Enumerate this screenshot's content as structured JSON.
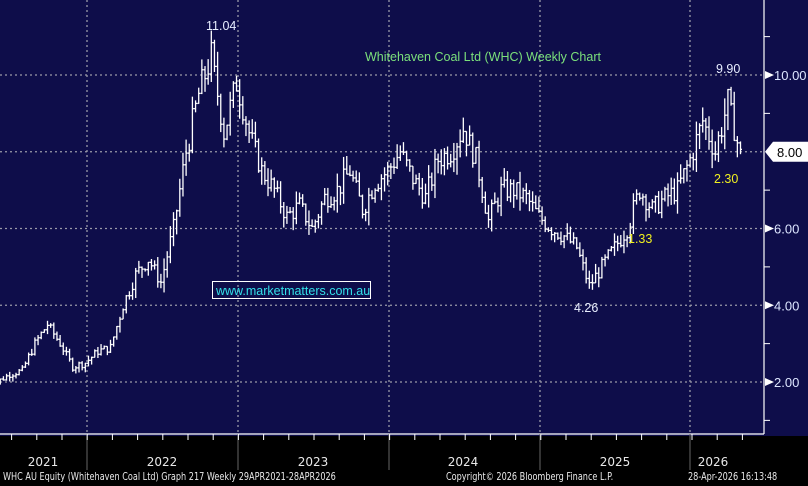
{
  "chart_data": {
    "type": "line",
    "style": "weekly-hlc-bars",
    "title": "Whitehaven Coal Ltd (WHC) Weekly Chart",
    "watermark_link": "www.marketmatters.com.au",
    "xlabel": "",
    "ylabel": "",
    "ylim": [
      0.7,
      11.5
    ],
    "y_ticks": [
      "2.00",
      "4.00",
      "6.00",
      "8.00",
      "10.00"
    ],
    "y_tick_values": [
      2,
      4,
      6,
      8,
      10
    ],
    "x_ticks": [
      "2021",
      "2022",
      "2023",
      "2024",
      "2025",
      "2026"
    ],
    "current_price_tag": "8.00",
    "current_price": 8.0,
    "grid": true,
    "start_date": "2021-04-29",
    "end_date": "2026-04-28",
    "monthly_close_series": {
      "months_from": "2021-05",
      "values": [
        2.0,
        2.2,
        2.3,
        3.0,
        3.5,
        3.0,
        2.4,
        2.5,
        2.8,
        2.9,
        4.0,
        4.8,
        5.2,
        4.6,
        6.0,
        8.0,
        9.5,
        10.5,
        8.5,
        9.8,
        8.5,
        7.5,
        7.0,
        6.3,
        6.6,
        6.0,
        6.8,
        7.0,
        7.5,
        6.5,
        7.2,
        7.5,
        8.0,
        7.3,
        6.8,
        7.8,
        8.0,
        8.6,
        7.8,
        6.2,
        7.0,
        7.0,
        6.8,
        6.3,
        6.0,
        5.8,
        5.5,
        4.5,
        5.0,
        5.5,
        6.0,
        7.0,
        6.5,
        6.8,
        7.0,
        7.8,
        8.8,
        8.0,
        9.3,
        7.9
      ]
    },
    "annotations": [
      {
        "text": "11.04",
        "value": 11.04,
        "date": "2022-12",
        "color": "#e8eeff"
      },
      {
        "text": "9.90",
        "value": 9.9,
        "date": "2026-03",
        "color": "#e8eeff"
      },
      {
        "text": "4.26",
        "value": 4.26,
        "date": "2025-04",
        "color": "#e8eeff"
      },
      {
        "text": "2.30",
        "value": 2.3,
        "date": "2026-04",
        "color": "#f0f020"
      },
      {
        "text": "1.33",
        "value": 1.33,
        "date": "2025-08",
        "color": "#f0f020"
      }
    ]
  },
  "colors": {
    "background": "#0e0d4a",
    "bars": "#ffffff",
    "title": "#7be07b",
    "link": "#33e0e8",
    "grid": "#9a9aa8"
  },
  "footer": {
    "security": "WHC AU Equity (Whitehaven Coal Ltd) Graph 217 Weekly 29APR2021-28APR2026",
    "copyright": "Copyright© 2026 Bloomberg Finance L.P.",
    "timestamp": "28-Apr-2026 16:13:48"
  }
}
